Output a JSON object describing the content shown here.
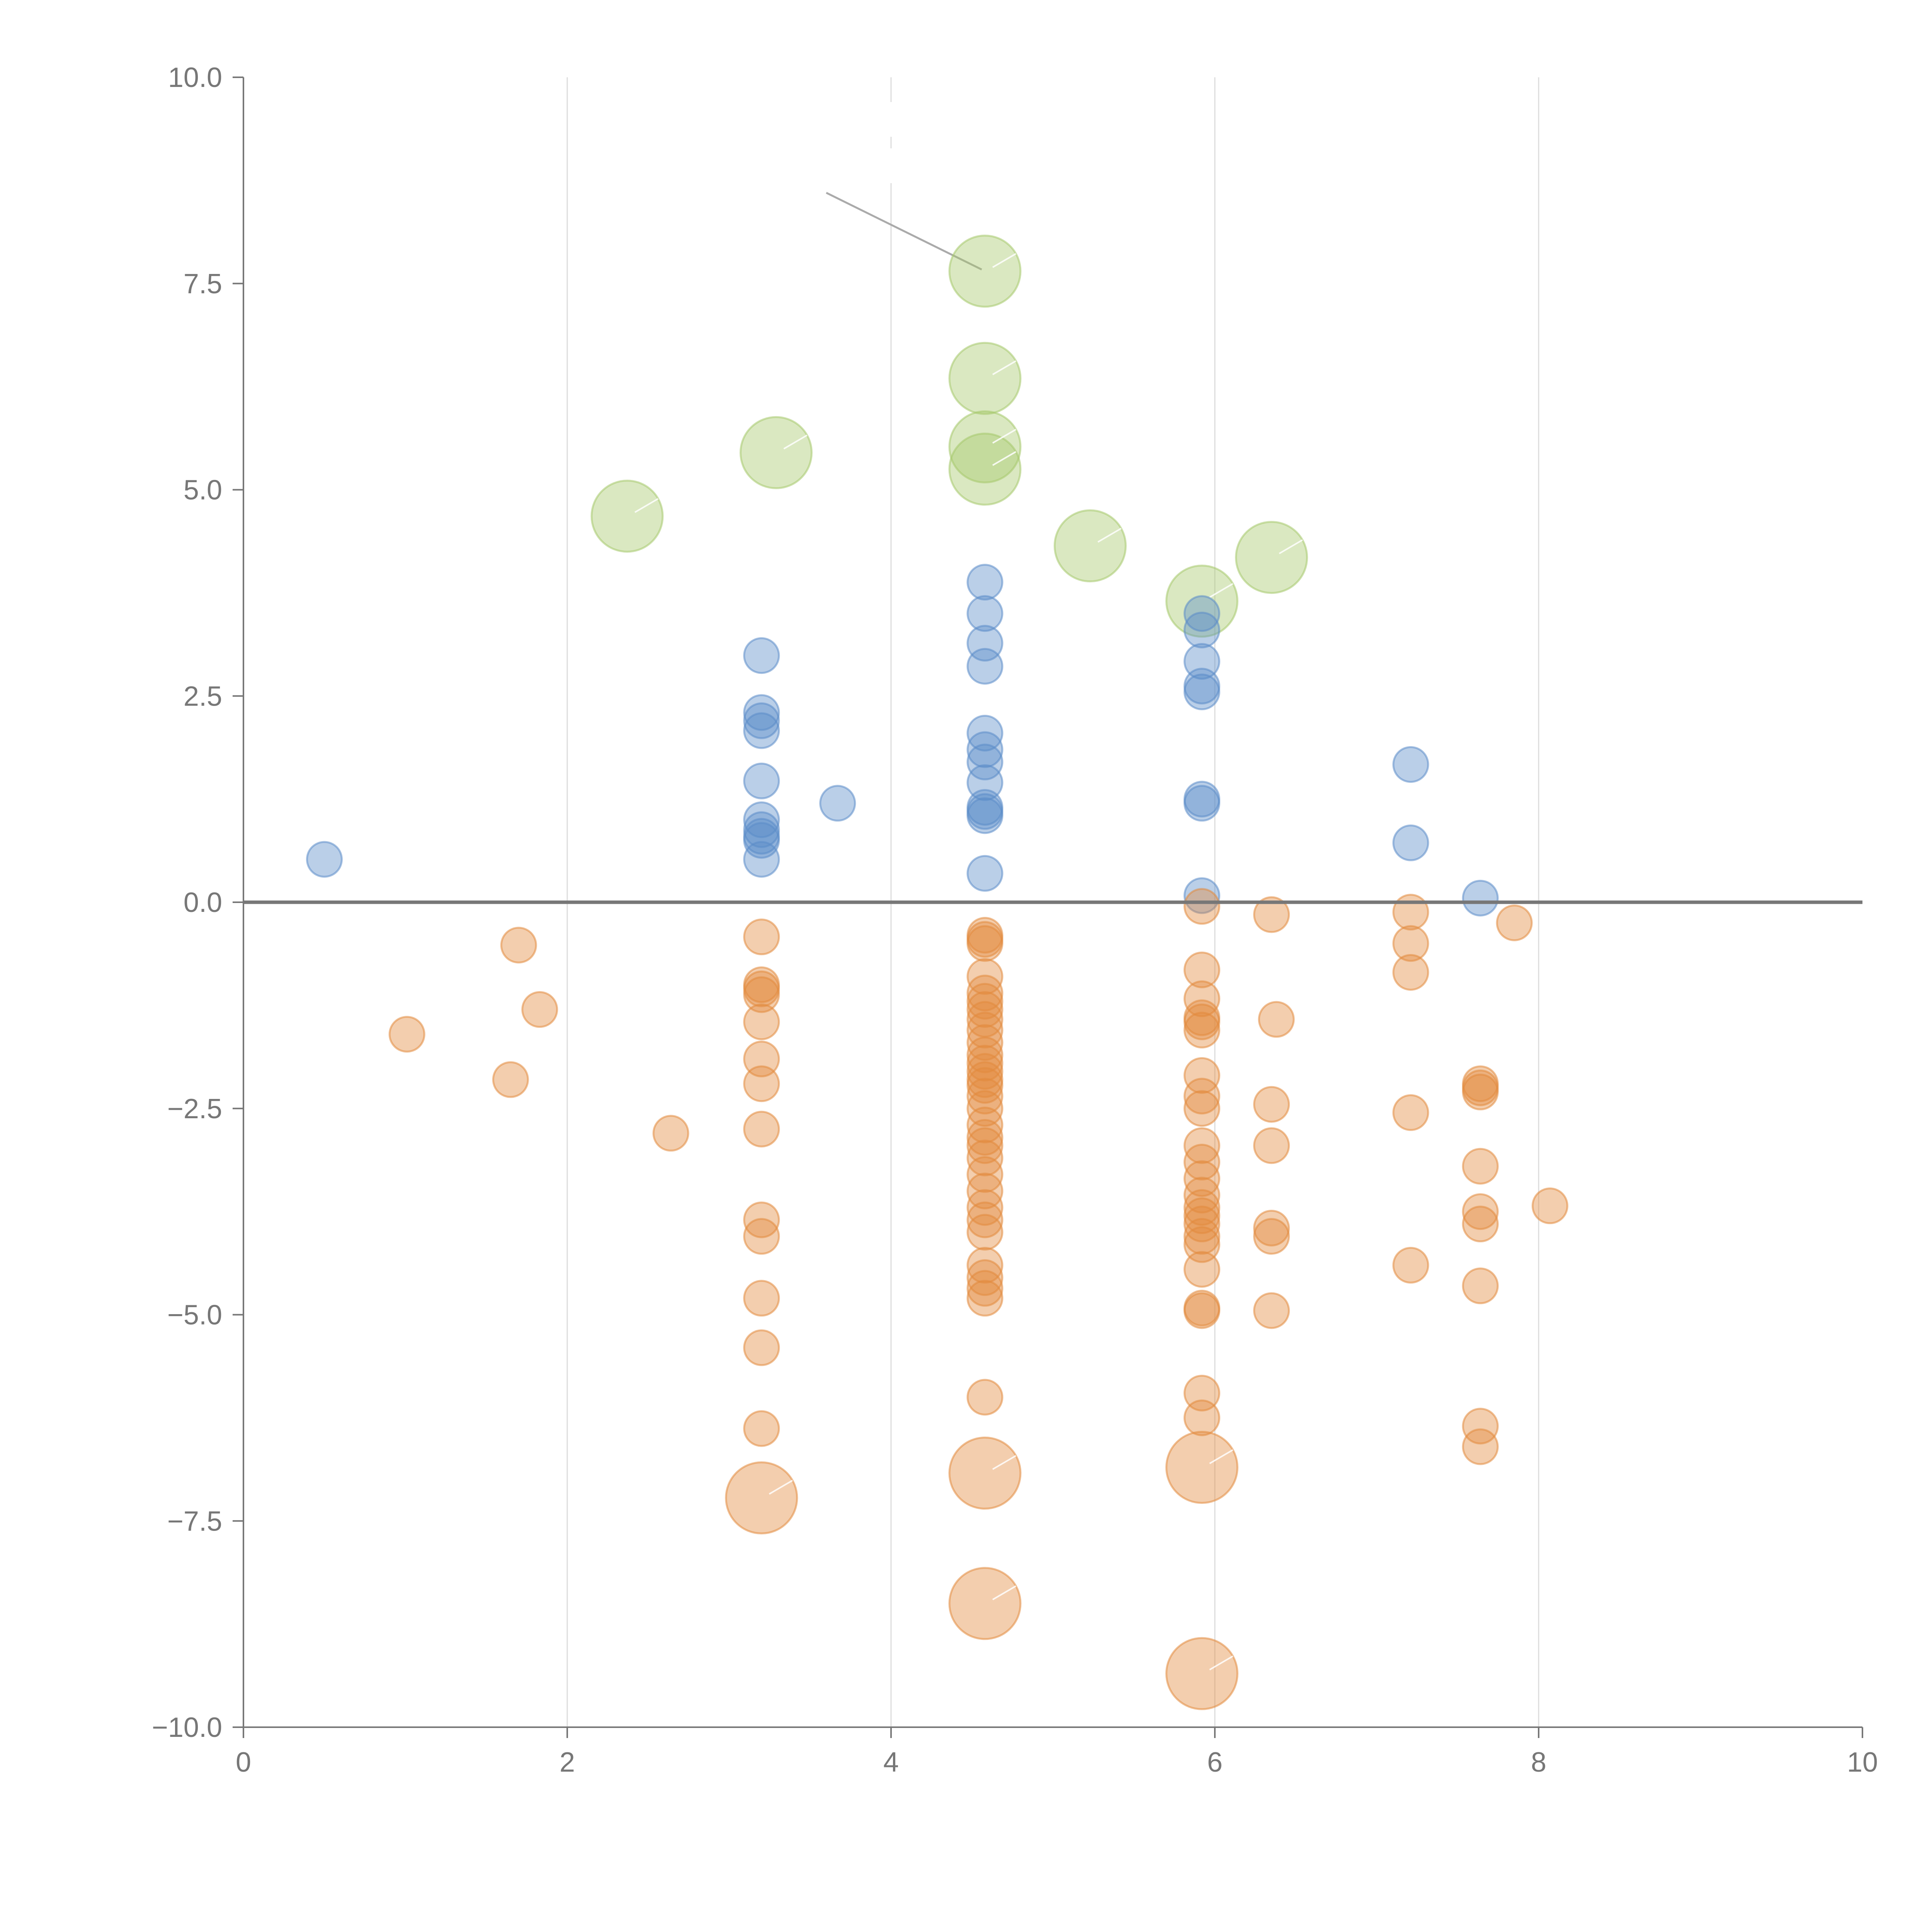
{
  "chart_data": {
    "type": "scatter",
    "title": "",
    "xlabel": "",
    "ylabel": "",
    "xlim": [
      0,
      10
    ],
    "ylim": [
      -10,
      10
    ],
    "grid": "vertical",
    "zero_line": true,
    "legend": "none",
    "x_ticks": [
      0,
      2,
      4,
      6,
      8,
      10
    ],
    "x_tick_labels": [
      "0",
      "2",
      "4",
      "6",
      "8",
      "10"
    ],
    "y_ticks": [
      10,
      7.5,
      5,
      2.5,
      0,
      -2.5,
      -5,
      -7.5,
      -10
    ],
    "y_tick_labels": [
      "10.0",
      "7.5",
      "5.0",
      "2.5",
      "0.0",
      "−2.5",
      "−5.0",
      "−7.5",
      "−10.0"
    ],
    "colors": {
      "positive": "#5b8cc8",
      "negative": "#e28a3e",
      "highlight": "#a6c86b",
      "axis": "#777777",
      "grid": "#dcdcdc",
      "annotation_line": "#aaaaaa"
    },
    "series": [
      {
        "name": "highlight",
        "color": "#a6c86b",
        "size": "large",
        "points": [
          [
            4.58,
            7.65
          ],
          [
            4.58,
            6.35
          ],
          [
            4.58,
            5.52
          ],
          [
            3.29,
            5.45
          ],
          [
            2.37,
            4.68
          ],
          [
            5.23,
            4.32
          ],
          [
            6.35,
            4.18
          ],
          [
            5.92,
            3.65
          ],
          [
            4.58,
            5.25
          ]
        ]
      },
      {
        "name": "positive",
        "color": "#5b8cc8",
        "size": "small",
        "points": [
          [
            0.5,
            0.52
          ],
          [
            3.2,
            2.99
          ],
          [
            3.2,
            2.3
          ],
          [
            3.2,
            2.2
          ],
          [
            3.2,
            2.08
          ],
          [
            3.2,
            1.47
          ],
          [
            3.2,
            1.0
          ],
          [
            3.2,
            0.88
          ],
          [
            3.2,
            0.8
          ],
          [
            3.2,
            0.75
          ],
          [
            3.2,
            0.52
          ],
          [
            3.67,
            1.2
          ],
          [
            4.58,
            3.88
          ],
          [
            4.58,
            3.5
          ],
          [
            4.58,
            3.14
          ],
          [
            4.58,
            2.86
          ],
          [
            4.58,
            2.05
          ],
          [
            4.58,
            1.85
          ],
          [
            4.58,
            1.7
          ],
          [
            4.58,
            1.45
          ],
          [
            4.58,
            1.15
          ],
          [
            4.58,
            1.1
          ],
          [
            4.58,
            1.05
          ],
          [
            4.58,
            0.35
          ],
          [
            5.92,
            3.5
          ],
          [
            5.92,
            3.3
          ],
          [
            5.92,
            2.92
          ],
          [
            5.92,
            2.62
          ],
          [
            5.92,
            2.55
          ],
          [
            5.92,
            1.25
          ],
          [
            5.92,
            1.2
          ],
          [
            5.92,
            0.08
          ],
          [
            7.21,
            1.67
          ],
          [
            7.21,
            0.72
          ],
          [
            7.64,
            0.05
          ]
        ]
      },
      {
        "name": "negative",
        "color": "#e28a3e",
        "size": "small",
        "points": [
          [
            1.7,
            -0.52
          ],
          [
            1.01,
            -1.6
          ],
          [
            1.83,
            -1.3
          ],
          [
            1.65,
            -2.15
          ],
          [
            2.64,
            -2.8
          ],
          [
            3.2,
            -0.42
          ],
          [
            3.2,
            -1.0
          ],
          [
            3.2,
            -1.05
          ],
          [
            3.2,
            -1.12
          ],
          [
            3.2,
            -1.45
          ],
          [
            3.2,
            -1.9
          ],
          [
            3.2,
            -2.2
          ],
          [
            3.2,
            -2.75
          ],
          [
            3.2,
            -3.85
          ],
          [
            3.2,
            -4.05
          ],
          [
            3.2,
            -4.8
          ],
          [
            3.2,
            -5.4
          ],
          [
            3.2,
            -6.38
          ],
          [
            4.58,
            -0.4
          ],
          [
            4.58,
            -0.45
          ],
          [
            4.58,
            -0.5
          ],
          [
            4.58,
            -0.9
          ],
          [
            4.58,
            -1.1
          ],
          [
            4.58,
            -1.2
          ],
          [
            4.58,
            -1.3
          ],
          [
            4.58,
            -1.42
          ],
          [
            4.58,
            -1.55
          ],
          [
            4.58,
            -1.7
          ],
          [
            4.58,
            -1.85
          ],
          [
            4.58,
            -1.95
          ],
          [
            4.58,
            -2.05
          ],
          [
            4.58,
            -2.15
          ],
          [
            4.58,
            -2.22
          ],
          [
            4.58,
            -2.35
          ],
          [
            4.58,
            -2.5
          ],
          [
            4.58,
            -2.7
          ],
          [
            4.58,
            -2.85
          ],
          [
            4.58,
            -2.95
          ],
          [
            4.58,
            -3.1
          ],
          [
            4.58,
            -3.3
          ],
          [
            4.58,
            -3.5
          ],
          [
            4.58,
            -3.7
          ],
          [
            4.58,
            -3.85
          ],
          [
            4.58,
            -4.0
          ],
          [
            4.58,
            -4.4
          ],
          [
            4.58,
            -4.55
          ],
          [
            4.58,
            -4.68
          ],
          [
            4.58,
            -4.8
          ],
          [
            4.58,
            -6.0
          ],
          [
            5.92,
            -0.05
          ],
          [
            5.92,
            -0.82
          ],
          [
            5.92,
            -1.17
          ],
          [
            5.92,
            -1.4
          ],
          [
            5.92,
            -1.45
          ],
          [
            5.92,
            -1.55
          ],
          [
            5.92,
            -2.1
          ],
          [
            5.92,
            -2.35
          ],
          [
            5.92,
            -2.5
          ],
          [
            5.92,
            -2.95
          ],
          [
            5.92,
            -3.15
          ],
          [
            5.92,
            -3.35
          ],
          [
            5.92,
            -3.55
          ],
          [
            5.92,
            -3.7
          ],
          [
            5.92,
            -3.8
          ],
          [
            5.92,
            -3.9
          ],
          [
            5.92,
            -4.05
          ],
          [
            5.92,
            -4.15
          ],
          [
            5.92,
            -4.45
          ],
          [
            5.92,
            -4.92
          ],
          [
            5.92,
            -4.95
          ],
          [
            5.92,
            -5.95
          ],
          [
            5.92,
            -6.25
          ],
          [
            6.35,
            -0.15
          ],
          [
            6.38,
            -1.42
          ],
          [
            6.35,
            -2.45
          ],
          [
            6.35,
            -2.95
          ],
          [
            6.35,
            -3.95
          ],
          [
            6.35,
            -4.05
          ],
          [
            6.35,
            -4.95
          ],
          [
            7.21,
            -0.12
          ],
          [
            7.21,
            -0.5
          ],
          [
            7.21,
            -0.85
          ],
          [
            7.21,
            -2.55
          ],
          [
            7.21,
            -4.4
          ],
          [
            7.64,
            -2.2
          ],
          [
            7.64,
            -2.25
          ],
          [
            7.64,
            -2.3
          ],
          [
            7.64,
            -3.2
          ],
          [
            7.64,
            -3.75
          ],
          [
            7.64,
            -3.9
          ],
          [
            7.64,
            -4.65
          ],
          [
            7.64,
            -6.35
          ],
          [
            7.64,
            -6.6
          ],
          [
            7.85,
            -0.25
          ],
          [
            8.07,
            -3.68
          ]
        ]
      },
      {
        "name": "negative-large",
        "color": "#e28a3e",
        "size": "large",
        "points": [
          [
            3.2,
            -7.22
          ],
          [
            4.58,
            -6.92
          ],
          [
            4.58,
            -8.5
          ],
          [
            5.92,
            -6.85
          ],
          [
            5.92,
            -9.35
          ]
        ]
      }
    ],
    "annotation": {
      "from": [
        3.6,
        8.6
      ],
      "to": [
        4.56,
        7.67
      ],
      "dash_x": 4.0,
      "dash_y_range": [
        8.7,
        9.7
      ]
    }
  }
}
